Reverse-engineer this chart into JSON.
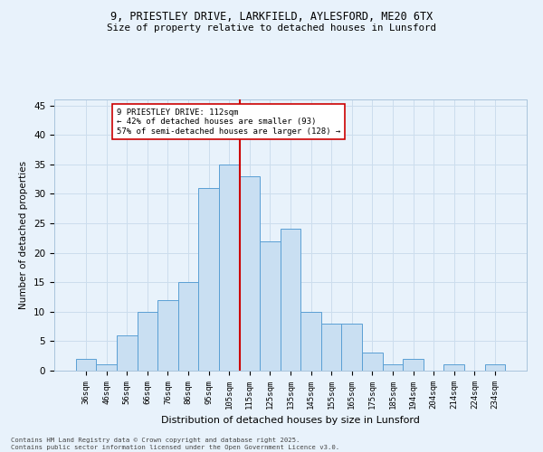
{
  "title_line1": "9, PRIESTLEY DRIVE, LARKFIELD, AYLESFORD, ME20 6TX",
  "title_line2": "Size of property relative to detached houses in Lunsford",
  "xlabel": "Distribution of detached houses by size in Lunsford",
  "ylabel": "Number of detached properties",
  "categories": [
    "36sqm",
    "46sqm",
    "56sqm",
    "66sqm",
    "76sqm",
    "86sqm",
    "95sqm",
    "105sqm",
    "115sqm",
    "125sqm",
    "135sqm",
    "145sqm",
    "155sqm",
    "165sqm",
    "175sqm",
    "185sqm",
    "194sqm",
    "204sqm",
    "214sqm",
    "224sqm",
    "234sqm"
  ],
  "values": [
    2,
    1,
    6,
    10,
    12,
    15,
    31,
    35,
    33,
    22,
    24,
    10,
    8,
    8,
    3,
    1,
    2,
    0,
    1,
    0,
    1
  ],
  "bar_color": "#c9dff2",
  "bar_edge_color": "#5a9fd4",
  "vline_color": "#cc0000",
  "annotation_text": "9 PRIESTLEY DRIVE: 112sqm\n← 42% of detached houses are smaller (93)\n57% of semi-detached houses are larger (128) →",
  "annotation_box_color": "#ffffff",
  "annotation_box_edge": "#cc0000",
  "grid_color": "#ccdded",
  "background_color": "#e8f2fb",
  "footer_text": "Contains HM Land Registry data © Crown copyright and database right 2025.\nContains public sector information licensed under the Open Government Licence v3.0.",
  "ylim": [
    0,
    46
  ],
  "yticks": [
    0,
    5,
    10,
    15,
    20,
    25,
    30,
    35,
    40,
    45
  ]
}
